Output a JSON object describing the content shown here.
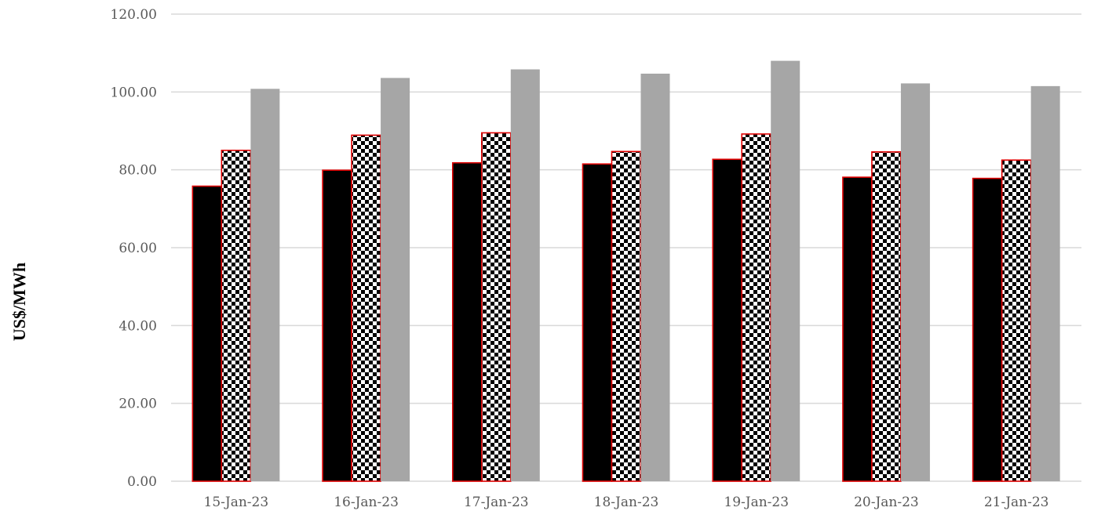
{
  "chart_data": {
    "type": "bar",
    "title": "",
    "xlabel": "",
    "ylabel": "US$/MWh",
    "ylim": [
      0,
      120
    ],
    "yticks": [
      "0.00",
      "20.00",
      "40.00",
      "60.00",
      "80.00",
      "100.00",
      "120.00"
    ],
    "grid": "horizontal",
    "legend": "none",
    "categories": [
      "15-Jan-23",
      "16-Jan-23",
      "17-Jan-23",
      "18-Jan-23",
      "19-Jan-23",
      "20-Jan-23",
      "21-Jan-23"
    ],
    "series": [
      {
        "values": [
          75.8,
          79.9,
          81.8,
          81.5,
          82.7,
          78.1,
          77.8
        ],
        "color": "#000000",
        "outline": "#e00000",
        "fill": "solid"
      },
      {
        "values": [
          85.0,
          88.9,
          89.5,
          84.7,
          89.2,
          84.6,
          82.5
        ],
        "color": "#000000",
        "outline": "#e00000",
        "fill": "checkerboard"
      },
      {
        "values": [
          100.8,
          103.6,
          105.8,
          104.7,
          108.0,
          102.2,
          101.5
        ],
        "color": "#a6a6a6",
        "outline": "none",
        "fill": "solid"
      }
    ],
    "colors": {
      "grid": "#d9d9d9",
      "tick_text": "#595959"
    }
  }
}
